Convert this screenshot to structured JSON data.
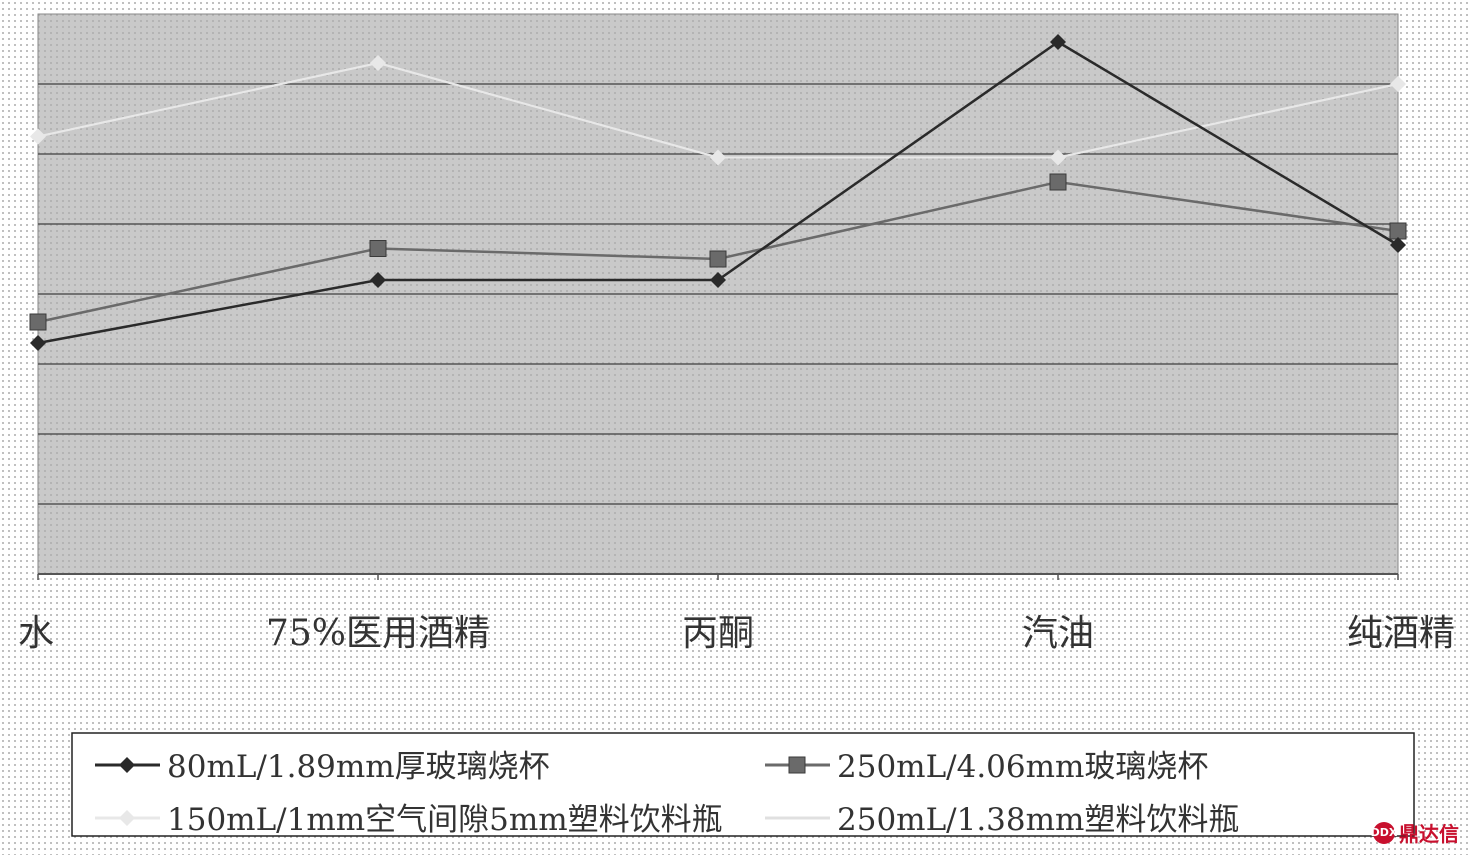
{
  "chart_data": {
    "type": "line",
    "categories": [
      "水",
      "75%医用酒精",
      "丙酮",
      "汽油",
      "纯酒精"
    ],
    "ylim": [
      0,
      8
    ],
    "grid": true,
    "legend_position": "bottom",
    "series": [
      {
        "name": "80mL/1.89mm厚玻璃烧杯",
        "values": [
          3.3,
          4.2,
          4.2,
          7.6,
          4.7
        ],
        "color": "#2a2a2a",
        "marker": "diamond"
      },
      {
        "name": "250mL/4.06mm玻璃烧杯",
        "values": [
          3.6,
          4.65,
          4.5,
          5.6,
          4.9
        ],
        "color": "#6a6a6a",
        "marker": "square"
      },
      {
        "name": "150mL/1mm空气间隙5mm塑料饮料瓶",
        "values": [
          6.25,
          7.3,
          5.95,
          5.95,
          7.0
        ],
        "color": "#e8e8e8",
        "marker": "diamond"
      },
      {
        "name": "250mL/1.38mm塑料饮料瓶",
        "values": [
          6.25,
          7.3,
          5.95,
          5.95,
          7.0
        ],
        "color": "#e0e0e0",
        "marker": "none"
      }
    ]
  },
  "watermark": {
    "text": "鼎达信",
    "icon_text": "DDX"
  }
}
